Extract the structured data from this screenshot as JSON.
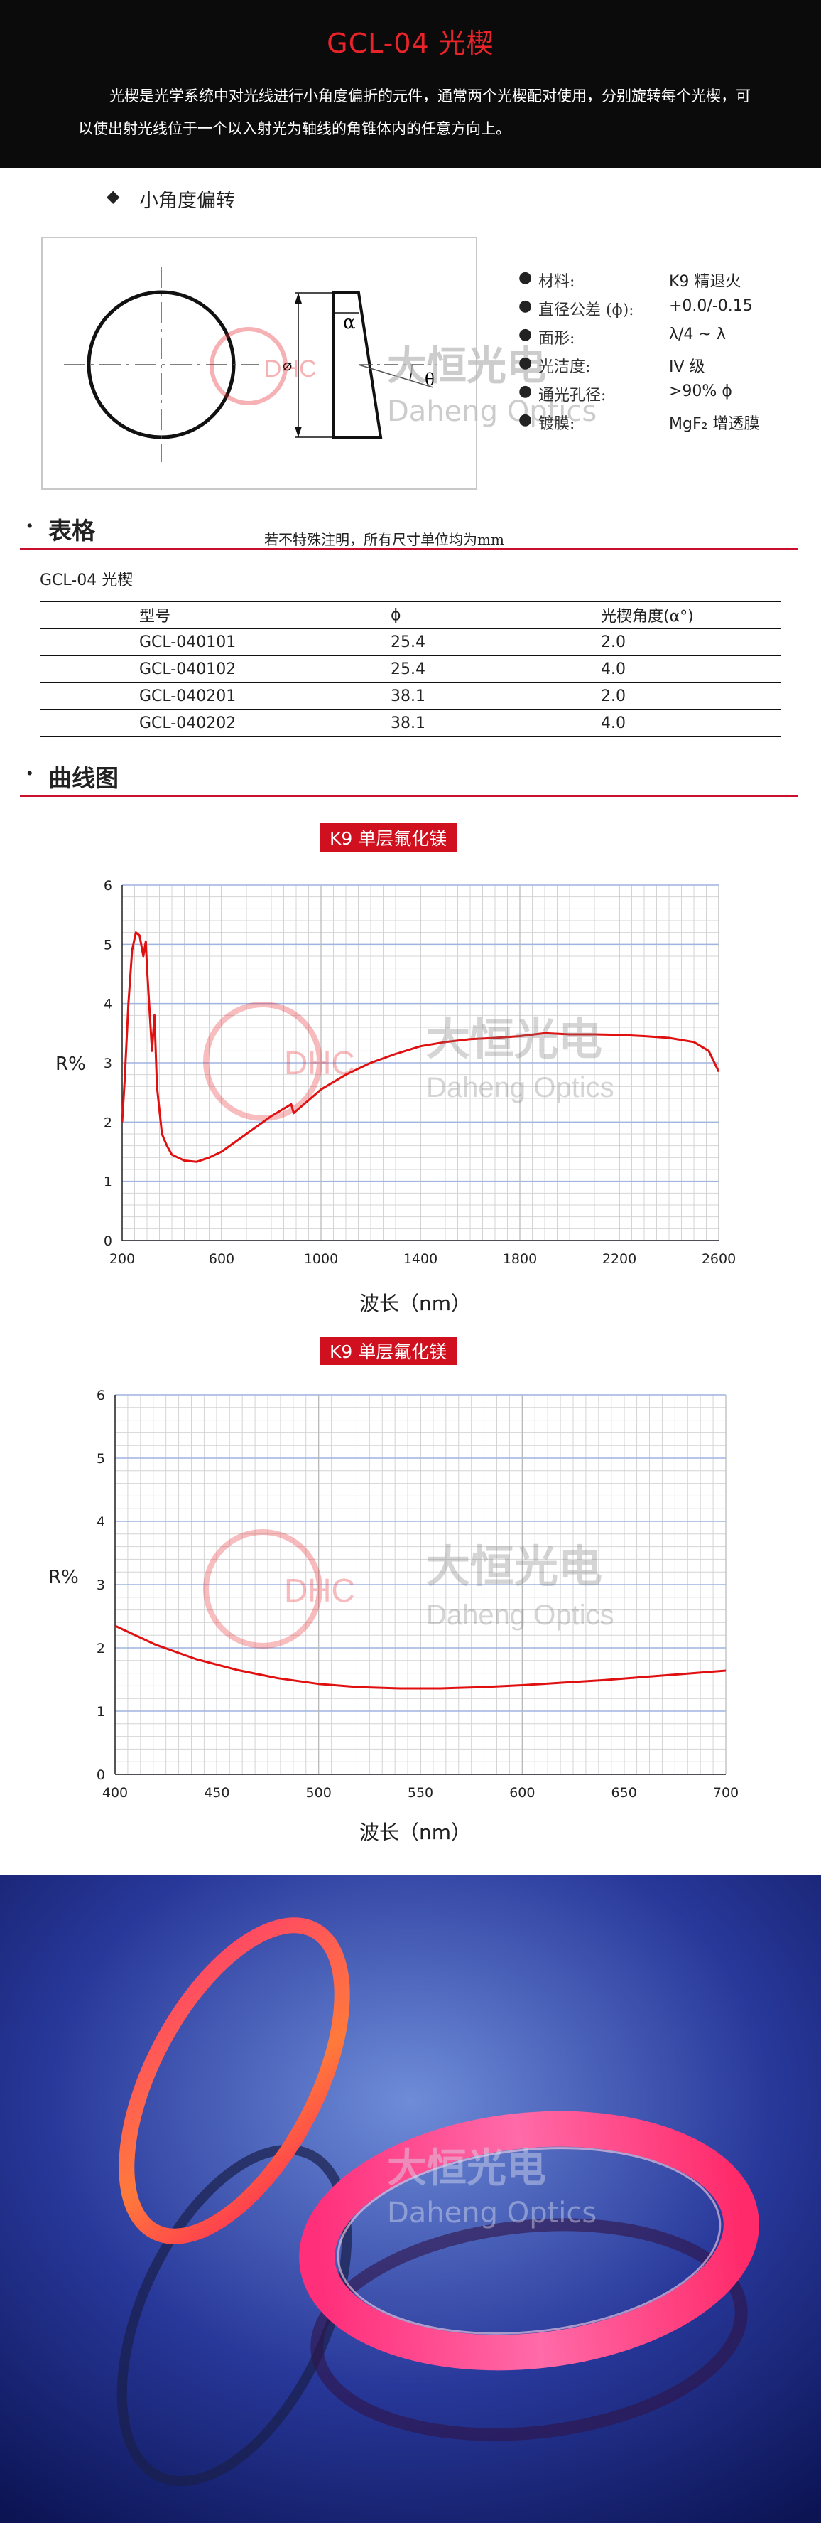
{
  "header": {
    "title": "GCL-04 光楔",
    "intro": "光楔是光学系统中对光线进行小角度偏折的元件，通常两个光楔配对使用，分别旋转每个光楔，可以使出射光线位于一个以入射光为轴线的角锥体内的任意方向上。"
  },
  "subsection": {
    "bullet": "◆",
    "title": "小角度偏转"
  },
  "diagram": {
    "alpha": "α",
    "theta": "θ",
    "diameter": "⌀"
  },
  "watermark": {
    "dhc": "DHC",
    "cn": "大恒光电",
    "en": "Daheng Optics"
  },
  "specs": [
    {
      "label": "材料:",
      "value": "K9 精退火"
    },
    {
      "label": "直径公差 (ϕ):",
      "value": "+0.0/-0.15"
    },
    {
      "label": "面形:",
      "value": "λ/4 ~ λ"
    },
    {
      "label": "光洁度:",
      "value": "IV 级"
    },
    {
      "label": "通光孔径:",
      "value": ">90% ϕ"
    },
    {
      "label": "镀膜:",
      "value": "MgF₂ 增透膜"
    }
  ],
  "table_section": {
    "dot": "·",
    "heading": "表格",
    "note": "若不特殊注明，所有尺寸单位均为mm",
    "product": "GCL-04 光楔",
    "columns": [
      "型号",
      "ϕ",
      "光楔角度(α°)"
    ],
    "rows": [
      [
        "GCL-040101",
        "25.4",
        "2.0"
      ],
      [
        "GCL-040102",
        "25.4",
        "4.0"
      ],
      [
        "GCL-040201",
        "38.1",
        "2.0"
      ],
      [
        "GCL-040202",
        "38.1",
        "4.0"
      ]
    ]
  },
  "curve_section": {
    "dot": "·",
    "heading": "曲线图"
  },
  "colors": {
    "accent": "#d0101e",
    "curve": "#e01010"
  },
  "chart_data": [
    {
      "type": "line",
      "title": "K9 单层氟化镁",
      "xlabel": "波长（nm）",
      "ylabel": "R%",
      "xlim": [
        200,
        2600
      ],
      "ylim": [
        0,
        6
      ],
      "xticks": [
        200,
        600,
        1000,
        1400,
        1800,
        2200,
        2600
      ],
      "yticks": [
        0,
        1,
        2,
        3,
        4,
        5,
        6
      ],
      "grid": true,
      "series": [
        {
          "x": [
            200,
            210,
            225,
            240,
            255,
            270,
            285,
            295,
            300,
            310,
            320,
            330,
            340,
            360,
            380,
            400,
            450,
            500,
            550,
            600,
            650,
            700,
            800,
            880,
            890,
            1000,
            1100,
            1200,
            1300,
            1400,
            1500,
            1600,
            1700,
            1800,
            1900,
            2000,
            2100,
            2200,
            2300,
            2400,
            2500,
            2560,
            2600
          ],
          "y": [
            2.0,
            2.7,
            4.0,
            4.9,
            5.2,
            5.15,
            4.8,
            5.05,
            4.6,
            3.9,
            3.2,
            3.8,
            2.6,
            1.8,
            1.6,
            1.45,
            1.35,
            1.33,
            1.4,
            1.5,
            1.65,
            1.8,
            2.1,
            2.3,
            2.15,
            2.55,
            2.8,
            3.0,
            3.15,
            3.28,
            3.35,
            3.4,
            3.42,
            3.45,
            3.5,
            3.48,
            3.48,
            3.47,
            3.45,
            3.42,
            3.35,
            3.2,
            2.85
          ]
        }
      ]
    },
    {
      "type": "line",
      "title": "K9 单层氟化镁",
      "xlabel": "波长（nm）",
      "ylabel": "R%",
      "xlim": [
        400,
        700
      ],
      "ylim": [
        0,
        6
      ],
      "xticks": [
        400,
        450,
        500,
        550,
        600,
        650,
        700
      ],
      "yticks": [
        0,
        1,
        2,
        3,
        4,
        5,
        6
      ],
      "grid": true,
      "series": [
        {
          "x": [
            400,
            420,
            440,
            460,
            480,
            500,
            520,
            540,
            560,
            580,
            600,
            620,
            640,
            660,
            680,
            700
          ],
          "y": [
            2.35,
            2.05,
            1.82,
            1.65,
            1.52,
            1.43,
            1.38,
            1.36,
            1.36,
            1.38,
            1.41,
            1.45,
            1.49,
            1.54,
            1.59,
            1.64
          ]
        }
      ]
    }
  ]
}
